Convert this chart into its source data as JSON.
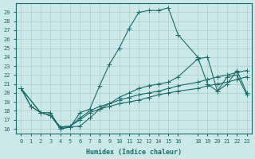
{
  "xlabel": "Humidex (Indice chaleur)",
  "bg_color": "#cde8e8",
  "line_color": "#1a6b6b",
  "grid_color": "#aecccc",
  "xlim": [
    -0.5,
    23.5
  ],
  "ylim": [
    15.5,
    30
  ],
  "yticks": [
    16,
    17,
    18,
    19,
    20,
    21,
    22,
    23,
    24,
    25,
    26,
    27,
    28,
    29
  ],
  "xticks": [
    0,
    1,
    2,
    3,
    4,
    5,
    6,
    7,
    8,
    9,
    10,
    11,
    12,
    13,
    14,
    15,
    16,
    18,
    19,
    20,
    21,
    22,
    23
  ],
  "curve1_x": [
    0,
    1,
    2,
    3,
    4,
    5,
    6,
    7,
    8,
    9,
    10,
    11,
    12,
    13,
    14,
    15,
    16,
    18,
    19,
    20,
    21,
    22,
    23
  ],
  "curve1_y": [
    20.5,
    18.5,
    17.8,
    17.8,
    16.0,
    16.2,
    17.8,
    18.2,
    20.8,
    23.2,
    25.0,
    27.2,
    29.0,
    29.2,
    29.2,
    29.5,
    26.5,
    24.0,
    21.0,
    20.2,
    21.8,
    22.0,
    19.8
  ],
  "curve2_x": [
    0,
    1,
    2,
    3,
    4,
    5,
    6,
    7,
    8,
    9,
    10,
    11,
    12,
    13,
    14,
    15,
    16,
    18,
    19,
    20,
    21,
    22,
    23
  ],
  "curve2_y": [
    20.5,
    18.5,
    17.8,
    17.5,
    16.0,
    16.2,
    16.3,
    17.2,
    18.2,
    18.8,
    19.5,
    20.0,
    20.5,
    20.8,
    21.0,
    21.2,
    21.8,
    23.8,
    24.0,
    20.2,
    21.0,
    22.5,
    20.0
  ],
  "curve3_x": [
    0,
    2,
    3,
    4,
    5,
    6,
    7,
    8,
    9,
    10,
    11,
    12,
    13,
    14,
    15,
    16,
    18,
    19,
    20,
    21,
    22,
    23
  ],
  "curve3_y": [
    20.5,
    17.8,
    17.5,
    16.2,
    16.3,
    17.2,
    18.0,
    18.5,
    18.8,
    19.2,
    19.5,
    19.8,
    20.0,
    20.2,
    20.5,
    20.8,
    21.2,
    21.5,
    21.8,
    22.0,
    22.3,
    22.5
  ],
  "curve4_x": [
    0,
    2,
    3,
    4,
    5,
    6,
    7,
    8,
    9,
    10,
    11,
    12,
    13,
    14,
    15,
    16,
    18,
    19,
    20,
    21,
    22,
    23
  ],
  "curve4_y": [
    20.5,
    17.8,
    17.5,
    16.2,
    16.3,
    17.0,
    17.8,
    18.2,
    18.5,
    18.8,
    19.0,
    19.2,
    19.5,
    19.8,
    20.0,
    20.2,
    20.5,
    20.8,
    21.0,
    21.2,
    21.5,
    21.8
  ],
  "markersize": 3
}
